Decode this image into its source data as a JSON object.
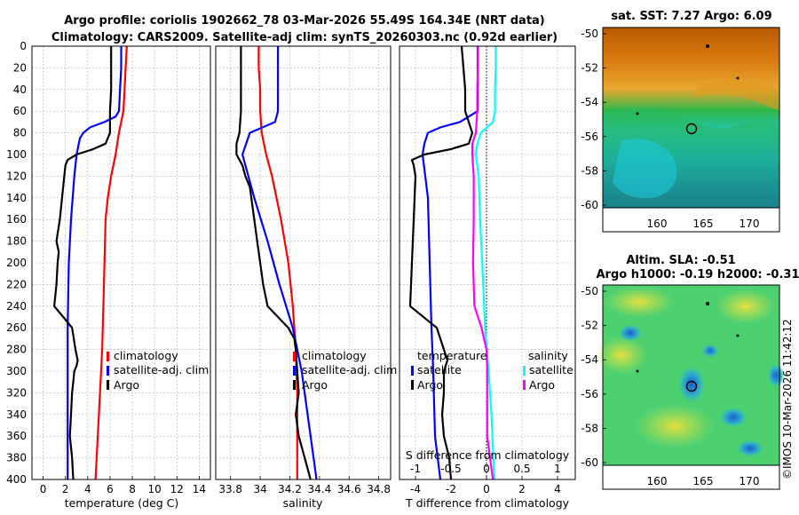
{
  "title": {
    "line1": "Argo profile: coriolis 1902662_78 03-Mar-2026 55.49S 164.34E (NRT data)",
    "line2": "Climatology: CARS2009. Satellite-adj clim: synTS_20260303.nc (0.92d earlier)"
  },
  "watermark": "©IMOS 10-Mar-2026 11:42:12",
  "colors": {
    "argo": "#000000",
    "climatology": "#ff0000",
    "satellite": "#0000ff",
    "salinity_sat": "#00ffff",
    "salinity_argo": "#ff00ff"
  },
  "legends": {
    "temp": [
      "climatology",
      "satellite-adj. clim",
      "Argo"
    ],
    "sal": [
      "climatology",
      "satellite-adj. clim",
      "Argo"
    ],
    "diff": {
      "temp_title": "temperature",
      "sal_title": "salinity",
      "t_items": [
        "satellite",
        "Argo"
      ],
      "s_items": [
        "satellite",
        "Argo"
      ]
    }
  },
  "map_sst": {
    "title": "sat. SST: 7.27 Argo: 6.09",
    "icon": "sst-field-map",
    "yticks": [
      "-50",
      "-52",
      "-54",
      "-56",
      "-58",
      "-60"
    ],
    "xticks": [
      "160",
      "165",
      "170"
    ]
  },
  "map_sla": {
    "title1": "Altim. SLA: -0.51",
    "title2": "Argo h1000: -0.19 h2000: -0.31",
    "icon": "sla-field-map",
    "yticks": [
      "-50",
      "-52",
      "-54",
      "-56",
      "-58",
      "-60"
    ],
    "xticks": [
      "160",
      "165",
      "170"
    ]
  },
  "chart_data": [
    {
      "type": "line",
      "name": "temperature-profile",
      "xlabel": "temperature (deg C)",
      "ylabel": "",
      "xlim": [
        -1,
        15
      ],
      "ylim": [
        400,
        0
      ],
      "xticks": [
        0,
        2,
        4,
        6,
        8,
        10,
        12,
        14
      ],
      "yticks": [
        0,
        20,
        40,
        60,
        80,
        100,
        120,
        140,
        160,
        180,
        200,
        220,
        240,
        260,
        280,
        300,
        320,
        340,
        360,
        380,
        400
      ],
      "series": [
        {
          "name": "climatology",
          "color": "#ff0000",
          "depth": [
            0,
            20,
            40,
            60,
            70,
            80,
            100,
            120,
            140,
            160,
            200,
            240,
            280,
            300,
            320,
            340,
            360,
            400
          ],
          "values": [
            7.5,
            7.4,
            7.3,
            7.2,
            7.0,
            6.8,
            6.5,
            6.1,
            5.8,
            5.6,
            5.5,
            5.4,
            5.3,
            5.2,
            5.1,
            5.0,
            4.9,
            4.7
          ]
        },
        {
          "name": "satellite-adj. clim",
          "color": "#0000ff",
          "depth": [
            0,
            20,
            40,
            60,
            65,
            70,
            75,
            80,
            85,
            100,
            120,
            160,
            200,
            260,
            300,
            360,
            400
          ],
          "values": [
            7.0,
            7.0,
            6.9,
            6.8,
            6.5,
            5.5,
            4.2,
            3.6,
            3.3,
            3.0,
            2.8,
            2.5,
            2.3,
            2.2,
            2.2,
            2.2,
            2.2
          ]
        },
        {
          "name": "Argo",
          "color": "#000000",
          "depth": [
            0,
            20,
            40,
            60,
            80,
            90,
            95,
            100,
            105,
            110,
            120,
            140,
            160,
            180,
            190,
            200,
            220,
            240,
            250,
            260,
            280,
            290,
            295,
            300,
            310,
            320,
            340,
            360,
            380,
            400
          ],
          "values": [
            6.1,
            6.1,
            6.1,
            6.0,
            6.0,
            5.6,
            4.5,
            3.0,
            2.2,
            2.0,
            1.9,
            1.7,
            1.5,
            1.2,
            1.4,
            1.3,
            1.2,
            1.0,
            1.8,
            2.6,
            2.9,
            3.1,
            3.0,
            2.8,
            2.7,
            2.6,
            2.5,
            2.4,
            2.6,
            2.7
          ]
        }
      ]
    },
    {
      "type": "line",
      "name": "salinity-profile",
      "xlabel": "salinity",
      "ylabel": "",
      "xlim": [
        33.7,
        34.88
      ],
      "ylim": [
        400,
        0
      ],
      "xticks": [
        33.8,
        34,
        34.2,
        34.4,
        34.6,
        34.8
      ],
      "xticklabels": [
        "33.8",
        "34",
        "34.2",
        "34.4",
        "34.6",
        "34.8"
      ],
      "series": [
        {
          "name": "climatology",
          "color": "#ff0000",
          "depth": [
            0,
            20,
            40,
            60,
            80,
            100,
            120,
            160,
            200,
            240,
            280,
            320,
            360,
            400
          ],
          "values": [
            33.99,
            33.99,
            34.0,
            34.0,
            34.01,
            34.04,
            34.08,
            34.14,
            34.19,
            34.22,
            34.24,
            34.25,
            34.25,
            34.25
          ]
        },
        {
          "name": "satellite-adj. clim",
          "color": "#0000ff",
          "depth": [
            0,
            20,
            40,
            60,
            70,
            80,
            100,
            140,
            180,
            220,
            260,
            300,
            340,
            380,
            400
          ],
          "values": [
            34.12,
            34.12,
            34.12,
            34.12,
            34.1,
            33.93,
            33.88,
            33.96,
            34.05,
            34.13,
            34.22,
            34.28,
            34.32,
            34.36,
            34.38
          ]
        },
        {
          "name": "Argo",
          "color": "#000000",
          "depth": [
            0,
            20,
            40,
            60,
            80,
            90,
            100,
            110,
            120,
            130,
            140,
            160,
            180,
            200,
            220,
            240,
            250,
            260,
            270,
            280,
            300,
            320,
            340,
            360,
            380,
            400
          ],
          "values": [
            33.87,
            33.87,
            33.87,
            33.87,
            33.86,
            33.84,
            33.84,
            33.88,
            33.9,
            33.93,
            33.94,
            33.96,
            33.98,
            34.0,
            34.02,
            34.05,
            34.12,
            34.19,
            34.23,
            34.24,
            34.25,
            34.26,
            34.24,
            34.26,
            34.3,
            34.34
          ]
        }
      ]
    },
    {
      "type": "line",
      "name": "difference-profile",
      "xlabel": "T difference from climatology",
      "top_xlabel": "S difference from climatology",
      "xlim": [
        -4.9,
        5
      ],
      "ylim": [
        400,
        0
      ],
      "xticks": [
        -4,
        -2,
        0,
        2,
        4
      ],
      "top_ticks": [
        -1,
        -0.5,
        0,
        0.5,
        1
      ],
      "top_ticklabels": [
        "-1",
        "-0.5",
        "0",
        "0.5",
        "1"
      ],
      "zero_line": 0,
      "series": [
        {
          "name": "satellite T",
          "color": "#0000ff",
          "depth": [
            0,
            60,
            70,
            75,
            80,
            90,
            100,
            140,
            200,
            260,
            300,
            360,
            400
          ],
          "values": [
            -0.5,
            -0.5,
            -1.5,
            -2.6,
            -3.3,
            -3.5,
            -3.6,
            -3.3,
            -3.2,
            -3.1,
            -3.0,
            -2.9,
            -2.6
          ]
        },
        {
          "name": "Argo T",
          "color": "#000000",
          "depth": [
            0,
            20,
            40,
            60,
            80,
            90,
            95,
            100,
            105,
            110,
            120,
            160,
            200,
            240,
            260,
            280,
            290,
            300,
            320,
            340,
            360,
            380,
            400
          ],
          "values": [
            -1.4,
            -1.3,
            -1.2,
            -1.2,
            -0.8,
            -1.0,
            -2.0,
            -3.5,
            -4.2,
            -4.1,
            -4.0,
            -4.1,
            -4.2,
            -4.3,
            -2.8,
            -2.4,
            -2.2,
            -2.4,
            -2.4,
            -2.5,
            -2.4,
            -2.1,
            -2.0
          ]
        },
        {
          "name": "satellite S",
          "color": "#00ffff",
          "depth": [
            0,
            20,
            40,
            60,
            70,
            80,
            90,
            100,
            120,
            160,
            200,
            260,
            300,
            340,
            400
          ],
          "values": [
            0.13,
            0.13,
            0.12,
            0.12,
            0.09,
            -0.08,
            -0.13,
            -0.15,
            -0.11,
            -0.09,
            -0.06,
            -0.02,
            0.03,
            0.07,
            0.11
          ]
        },
        {
          "name": "Argo S",
          "color": "#ff00ff",
          "depth": [
            0,
            20,
            40,
            60,
            80,
            90,
            100,
            120,
            160,
            200,
            240,
            260,
            280,
            300,
            320,
            360,
            400
          ],
          "values": [
            -0.12,
            -0.12,
            -0.13,
            -0.13,
            -0.15,
            -0.2,
            -0.2,
            -0.18,
            -0.18,
            -0.19,
            -0.17,
            -0.07,
            0.0,
            0.01,
            0.01,
            0.01,
            0.09
          ]
        }
      ]
    }
  ]
}
